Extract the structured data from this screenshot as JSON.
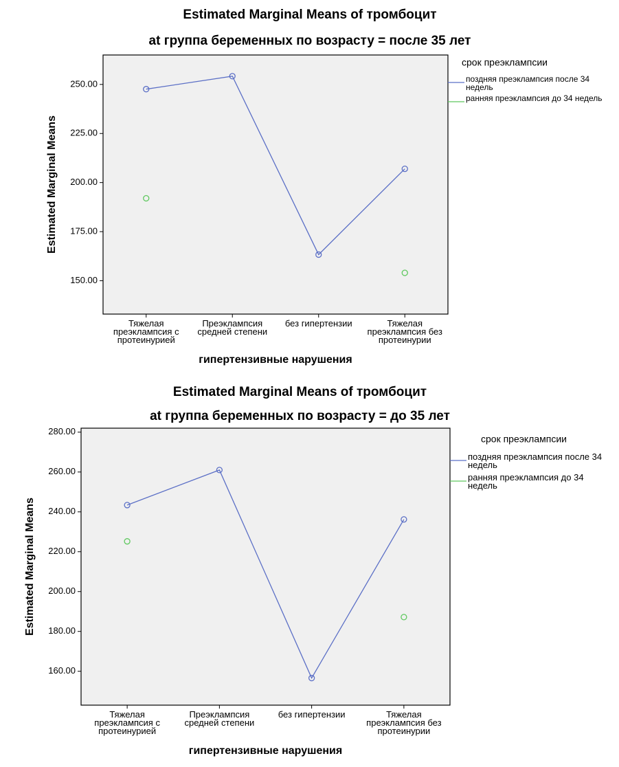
{
  "chart_data": [
    {
      "type": "line",
      "title": "Estimated Marginal Means of тромбоцит",
      "subtitle": "at группа беременных по возрасту = после 35 лет",
      "x_label": "гипертензивные нарушения",
      "y_label": "Estimated Marginal Means",
      "legend_title": "срок преэклампсии",
      "categories": [
        "Тяжелая преэклампсия с протеинурией",
        "Преэклампсия средней степени",
        "без гипертензии",
        "Тяжелая преэклампсия без протеинурии"
      ],
      "series": [
        {
          "name": "поздняя преэклампсия после 34 недель",
          "color": "#5b6fc6",
          "values": [
            247.6,
            254.2,
            163.3,
            207
          ]
        },
        {
          "name": "ранняя преэклампсия до 34 недель",
          "color": "#5ec85e",
          "values": [
            192,
            null,
            null,
            154
          ]
        }
      ],
      "ylim": [
        133,
        265
      ],
      "yticks": [
        {
          "value": 150,
          "label": "150.00"
        },
        {
          "value": 175,
          "label": "175.00"
        },
        {
          "value": 200,
          "label": "200.00"
        },
        {
          "value": 225,
          "label": "225.00"
        },
        {
          "value": 250,
          "label": "250.00"
        }
      ]
    },
    {
      "type": "line",
      "title": "Estimated Marginal Means of тромбоцит",
      "subtitle": "at группа беременных по возрасту = до 35 лет",
      "x_label": "гипертензивные нарушения",
      "y_label": "Estimated Marginal Means",
      "legend_title": "срок преэклампсии",
      "categories": [
        "Тяжелая преэклампсия с протеинурией",
        "Преэклампсия средней степени",
        "без гипертензии",
        "Тяжелая преэклампсия без протеинурии"
      ],
      "series": [
        {
          "name": "поздняя преэклампсия после 34 недель",
          "color": "#5b6fc6",
          "values": [
            243.4,
            261,
            156.6,
            236.2
          ]
        },
        {
          "name": "ранняя преэклампсия до 34 недель",
          "color": "#5ec85e",
          "values": [
            225.2,
            null,
            null,
            187.2
          ]
        }
      ],
      "ylim": [
        143,
        282
      ],
      "yticks": [
        {
          "value": 160,
          "label": "160.00"
        },
        {
          "value": 180,
          "label": "180.00"
        },
        {
          "value": 200,
          "label": "200.00"
        },
        {
          "value": 220,
          "label": "220.00"
        },
        {
          "value": 240,
          "label": "240.00"
        },
        {
          "value": 260,
          "label": "260.00"
        },
        {
          "value": 280,
          "label": "280.00"
        }
      ]
    }
  ]
}
